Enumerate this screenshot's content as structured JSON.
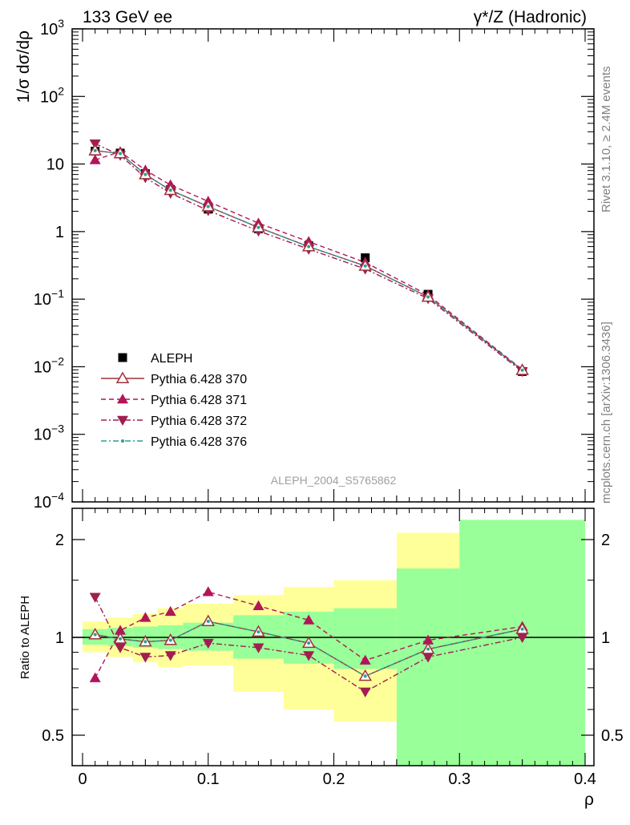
{
  "header": {
    "energy_label": "133 GeV ee",
    "process_label": "γ*/Z (Hadronic)"
  },
  "side_text": {
    "rivet": "Rivet 3.1.10, ≥ 2.4M events",
    "mcplots": "mcplots.cern.ch [arXiv:1306.3436]"
  },
  "analysis_id": "ALEPH_2004_S5765862",
  "colors": {
    "data": "#000000",
    "p370": "#a0323c",
    "p371": "#b4145a",
    "p372": "#a01e50",
    "p376": "#28a096",
    "band_inner": "#99ff99",
    "band_outer": "#ffff99"
  },
  "chart_data": [
    {
      "type": "scatter",
      "panel": "main",
      "ylabel": "1/σ dσ/dρ",
      "xlim": [
        -0.01,
        0.4
      ],
      "ylim": [
        0.0001,
        1000
      ],
      "log_y": true,
      "y_tick_labels": [
        {
          "base": "10",
          "exp": "−4",
          "value": 0.0001
        },
        {
          "base": "10",
          "exp": "−3",
          "value": 0.001
        },
        {
          "base": "10",
          "exp": "−2",
          "value": 0.01
        },
        {
          "base": "10",
          "exp": "−1",
          "value": 0.1
        },
        {
          "base": "1",
          "exp": "",
          "value": 1
        },
        {
          "base": "10",
          "exp": "",
          "value": 10
        },
        {
          "base": "10",
          "exp": "2",
          "value": 100
        },
        {
          "base": "10",
          "exp": "3",
          "value": 1000
        }
      ],
      "legend_position": "bottom-left",
      "x": [
        0.01,
        0.03,
        0.05,
        0.07,
        0.1,
        0.14,
        0.18,
        0.225,
        0.275,
        0.35
      ],
      "series": [
        {
          "name": "ALEPH",
          "key": "data",
          "style": "square",
          "values": [
            15.5,
            14.5,
            7.2,
            4.2,
            2.15,
            1.1,
            0.62,
            0.41,
            0.118,
            0.0085
          ]
        },
        {
          "name": "Pythia 6.428 370",
          "key": "p370",
          "style": "open-triangle-solid",
          "values": [
            15.8,
            14.3,
            7.0,
            4.1,
            2.35,
            1.15,
            0.6,
            0.31,
            0.108,
            0.0089
          ]
        },
        {
          "name": "Pythia 6.428 371",
          "key": "p371",
          "style": "triangle-dashed",
          "values": [
            11.5,
            15.2,
            8.1,
            4.9,
            2.8,
            1.33,
            0.71,
            0.35,
            0.115,
            0.0091
          ]
        },
        {
          "name": "Pythia 6.428 372",
          "key": "p372",
          "style": "down-triangle-dashdot",
          "values": [
            20.0,
            13.5,
            6.3,
            3.7,
            2.05,
            1.02,
            0.55,
            0.28,
            0.102,
            0.0085
          ]
        },
        {
          "name": "Pythia 6.428 376",
          "key": "p376",
          "style": "dot-dashdot",
          "values": [
            15.8,
            14.3,
            7.0,
            4.1,
            2.35,
            1.15,
            0.6,
            0.31,
            0.108,
            0.0089
          ]
        }
      ]
    },
    {
      "type": "line",
      "panel": "ratio",
      "ylabel": "Ratio to ALEPH",
      "xlabel": "ρ",
      "xlim": [
        -0.01,
        0.4
      ],
      "ylim": [
        0.35,
        2.3
      ],
      "log_y": true,
      "x_ticks": [
        0,
        0.1,
        0.2,
        0.3,
        0.4
      ],
      "x_tick_labels": [
        "0",
        "0.1",
        "0.2",
        "0.3",
        "0.4"
      ],
      "y_ticks": [
        0.5,
        1,
        2
      ],
      "y_tick_labels": [
        "0.5",
        "1",
        "2"
      ],
      "bands": {
        "edges": [
          0.0,
          0.02,
          0.04,
          0.06,
          0.08,
          0.12,
          0.16,
          0.2,
          0.25,
          0.3,
          0.4
        ],
        "inner_low": [
          0.95,
          0.94,
          0.93,
          0.92,
          0.91,
          0.86,
          0.83,
          0.8,
          0.35,
          0.35
        ],
        "inner_high": [
          1.06,
          1.07,
          1.08,
          1.09,
          1.11,
          1.17,
          1.2,
          1.23,
          1.63,
          2.3
        ],
        "outer_low": [
          0.9,
          0.87,
          0.84,
          0.81,
          0.82,
          0.68,
          0.6,
          0.55,
          0.35,
          0.35
        ],
        "outer_high": [
          1.12,
          1.15,
          1.18,
          1.23,
          1.27,
          1.35,
          1.43,
          1.5,
          2.1,
          2.3
        ],
        "outer_low_tail": [
          0.0,
          0.0,
          0.0,
          0.0,
          0.0,
          0.0,
          0.0,
          0.0,
          0.4,
          0.0
        ]
      },
      "x": [
        0.01,
        0.03,
        0.05,
        0.07,
        0.1,
        0.14,
        0.18,
        0.225,
        0.275,
        0.35
      ],
      "series": [
        {
          "name": "Pythia 6.428 370",
          "key": "p370",
          "style": "open-triangle-solid",
          "values": [
            1.02,
            0.99,
            0.97,
            0.98,
            1.12,
            1.04,
            0.96,
            0.76,
            0.92,
            1.06
          ]
        },
        {
          "name": "Pythia 6.428 371",
          "key": "p371",
          "style": "triangle-dashed",
          "values": [
            0.75,
            1.05,
            1.15,
            1.2,
            1.38,
            1.25,
            1.13,
            0.85,
            0.98,
            1.08
          ]
        },
        {
          "name": "Pythia 6.428 372",
          "key": "p372",
          "style": "down-triangle-dashdot",
          "values": [
            1.33,
            0.93,
            0.87,
            0.88,
            0.96,
            0.93,
            0.88,
            0.68,
            0.87,
            1.0
          ]
        },
        {
          "name": "Pythia 6.428 376",
          "key": "p376",
          "style": "dot-dashdot",
          "values": [
            1.02,
            0.99,
            0.97,
            0.98,
            1.12,
            1.04,
            0.96,
            0.76,
            0.92,
            1.06
          ]
        }
      ]
    }
  ]
}
